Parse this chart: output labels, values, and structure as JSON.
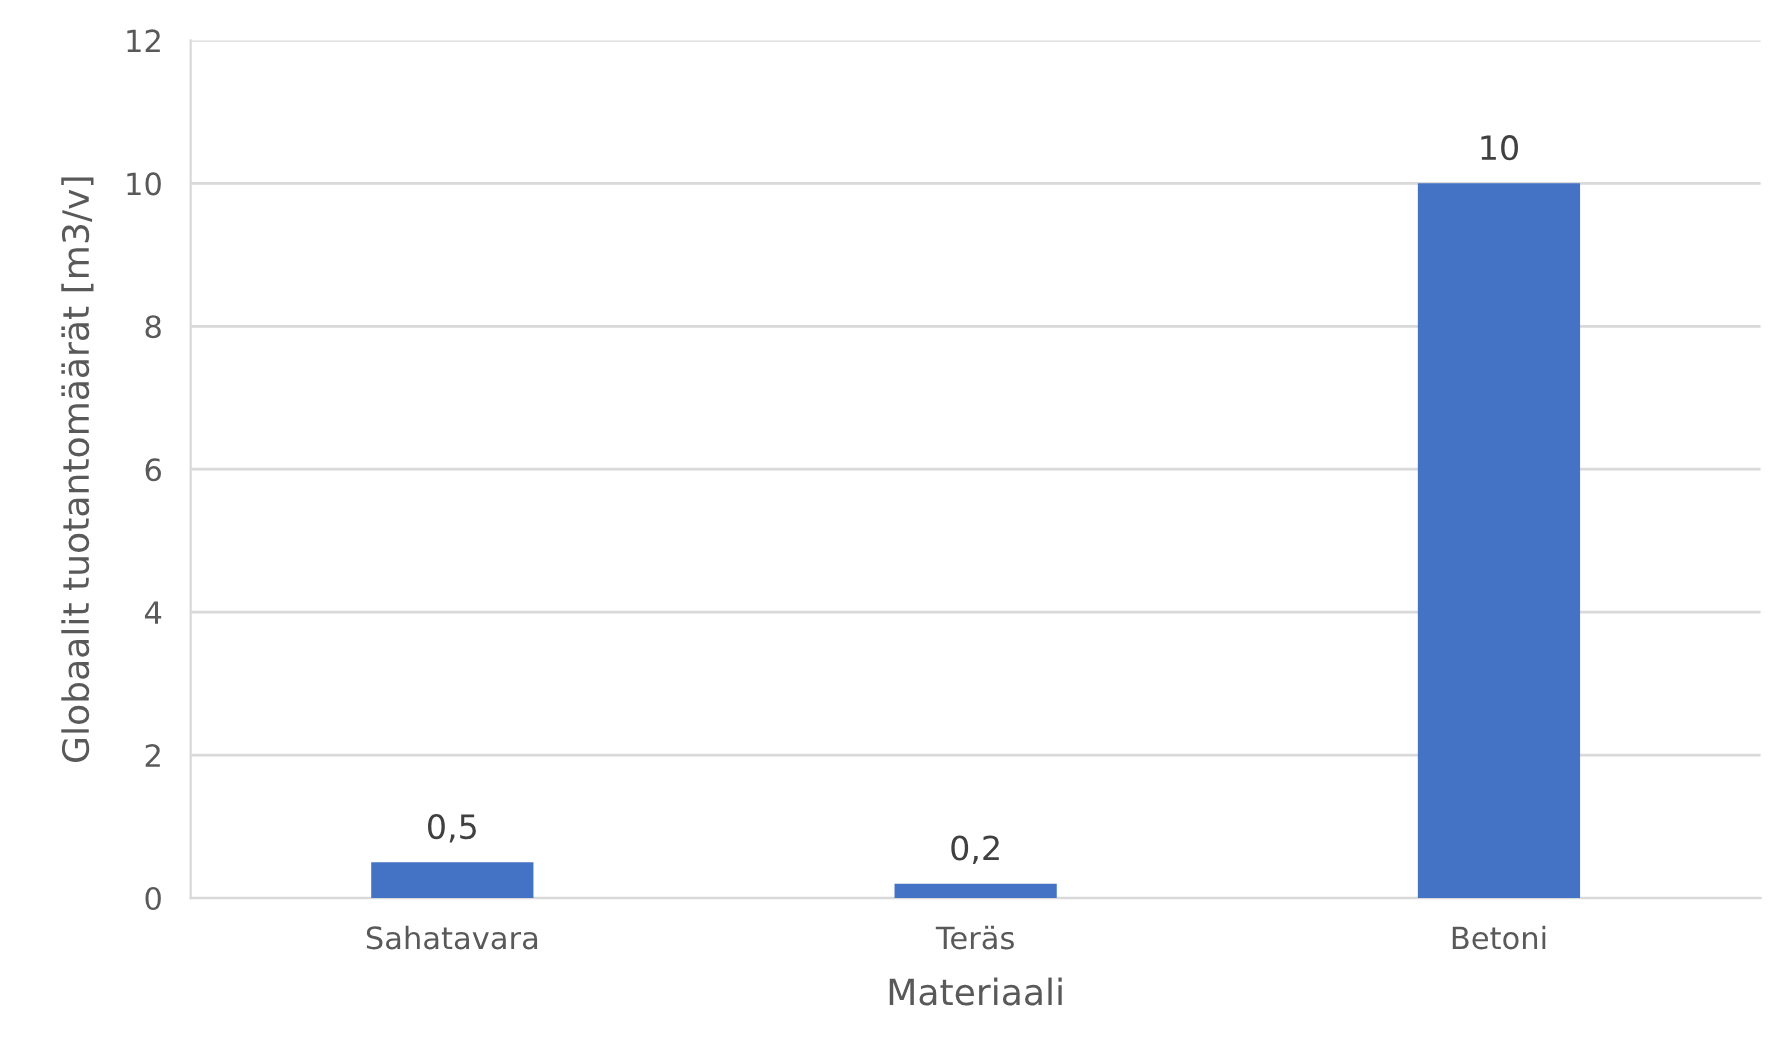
{
  "chart_data": {
    "type": "bar",
    "xlabel": "Materiaali",
    "ylabel": "Globaalit tuotantomäärät [m3/v]",
    "categories": [
      "Sahatavara",
      "Teräs",
      "Betoni"
    ],
    "values": [
      0.5,
      0.2,
      10
    ],
    "value_labels": [
      "0,5",
      "0,2",
      "10"
    ],
    "color": "#4472c4",
    "ylim": [
      0,
      12
    ],
    "yticks": [
      0,
      2,
      4,
      6,
      8,
      10,
      12
    ],
    "grid": "y",
    "legend": false
  }
}
